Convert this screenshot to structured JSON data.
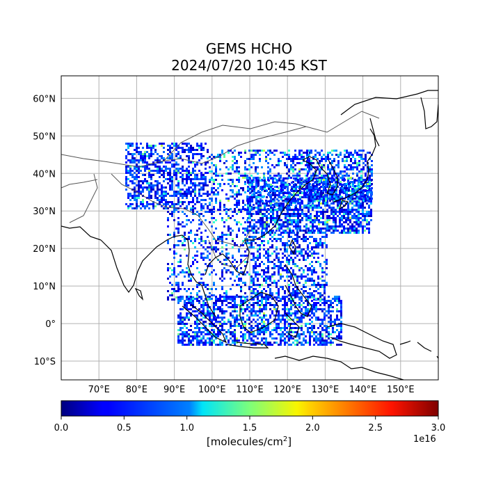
{
  "title": {
    "line1": "GEMS HCHO",
    "line2": "2024/07/20 10:45 KST"
  },
  "map": {
    "projection": "PlateCarree",
    "lon_range": [
      60,
      160
    ],
    "lat_range": [
      -15,
      66
    ],
    "lon_ticks": [
      "70°E",
      "80°E",
      "90°E",
      "100°E",
      "110°E",
      "120°E",
      "130°E",
      "140°E",
      "150°E"
    ],
    "lat_ticks": [
      "60°N",
      "50°N",
      "40°N",
      "30°N",
      "20°N",
      "10°N",
      "0°",
      "10°S"
    ],
    "gridlines": true,
    "coastline_color": "#000000",
    "border_color": "#555555"
  },
  "colorbar": {
    "colormap": "jet",
    "ticks": [
      "0.0",
      "0.5",
      "1.0",
      "1.5",
      "2.0",
      "2.5",
      "3.0"
    ],
    "unit_label": "[molecules/cm²]",
    "scale_exponent": "1e16",
    "range": [
      0,
      3.0
    ]
  },
  "icons": [
    "coastline-shape",
    "country-border-shape",
    "hcho-pixel-swath"
  ]
}
